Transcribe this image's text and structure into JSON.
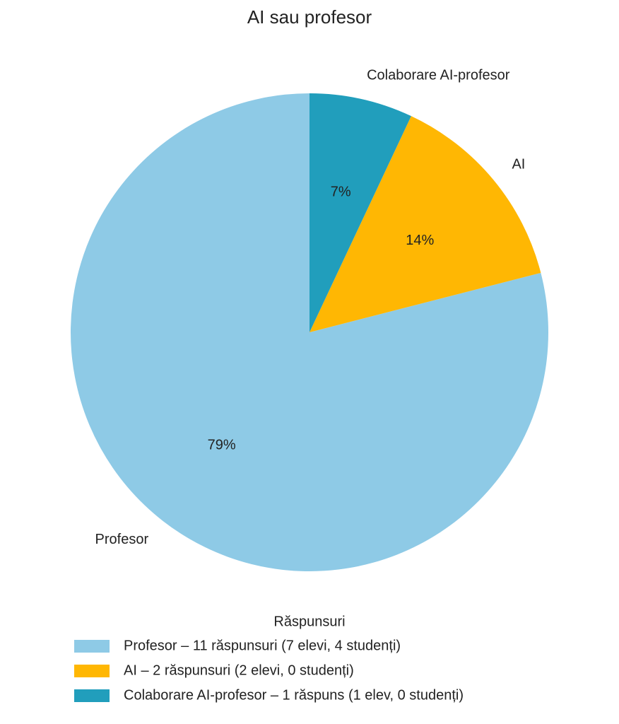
{
  "chart_data": {
    "type": "pie",
    "title": "AI sau profesor",
    "categories": [
      "Profesor",
      "AI",
      "Colaborare AI-profesor"
    ],
    "values": [
      79,
      14,
      7
    ],
    "value_labels": [
      "79%",
      "14%",
      "7%"
    ],
    "colors": [
      "#8ecae6",
      "#ffb703",
      "#219ebc"
    ],
    "start_angle": 90,
    "legend": {
      "title": "Răspunsuri",
      "labels": [
        "Profesor – 11 răspunsuri (7 elevi, 4 studenți)",
        "AI – 2 răspunsuri (2 elevi, 0 studenți)",
        "Colaborare AI-profesor – 1 răspuns (1 elev, 0 studenți)"
      ]
    }
  }
}
